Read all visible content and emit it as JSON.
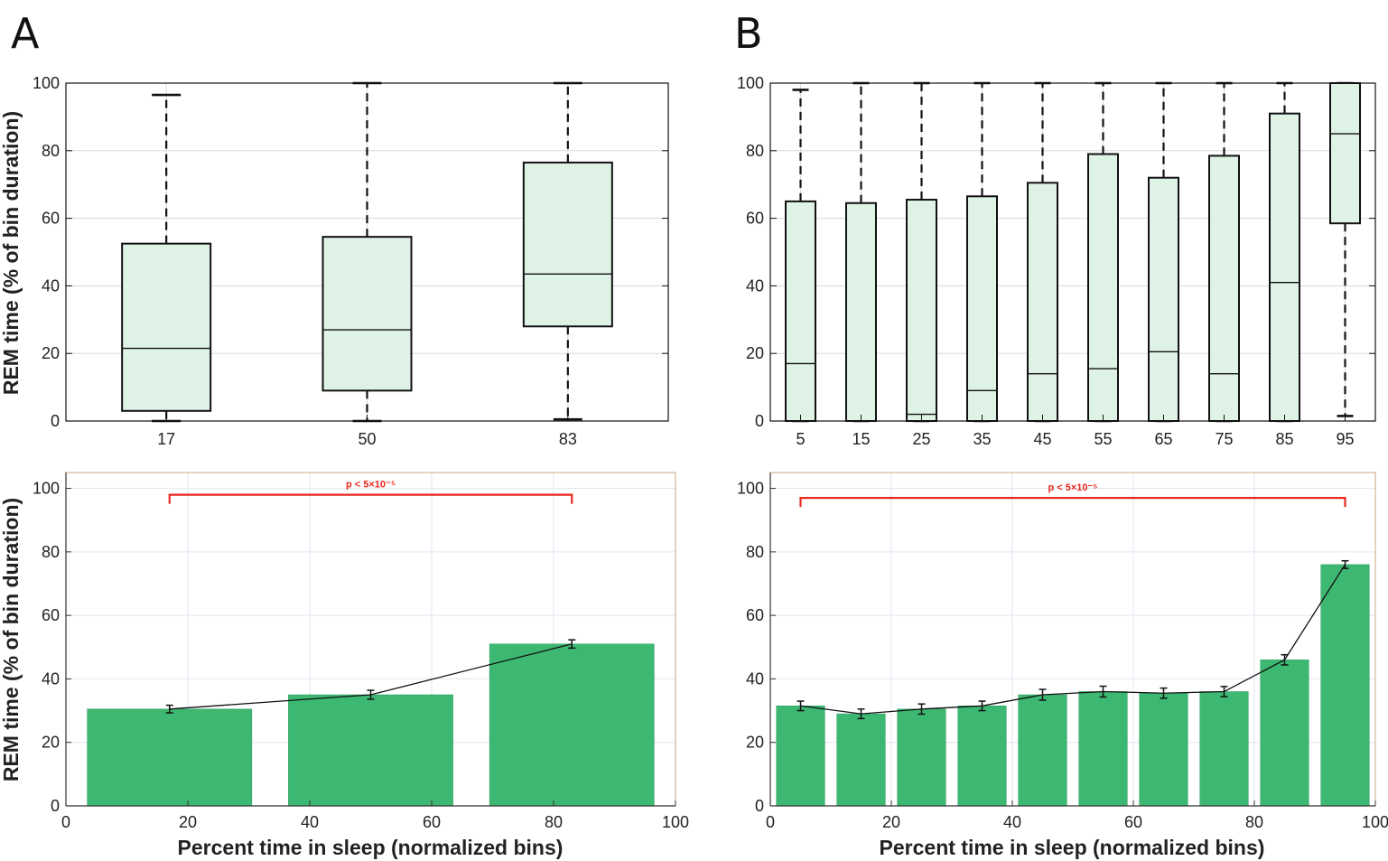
{
  "panels": {
    "a_label": "A",
    "b_label": "B"
  },
  "colors": {
    "box_fill": "#dff2e6",
    "bar_fill": "#3db872",
    "sig_color": "#e8271f",
    "grid": "#d9d9d9"
  },
  "chart_data": [
    {
      "id": "A-box",
      "type": "box",
      "categories": [
        "17",
        "50",
        "83"
      ],
      "ylim": [
        0,
        100
      ],
      "yticks": [
        "0",
        "20",
        "40",
        "60",
        "80",
        "100"
      ],
      "ylabel": "REM time (% of bin duration)",
      "boxes": [
        {
          "whislo": 0,
          "q1": 3,
          "med": 21.5,
          "q3": 52.5,
          "whishi": 96.5
        },
        {
          "whislo": 0,
          "q1": 9,
          "med": 27,
          "q3": 54.5,
          "whishi": 100
        },
        {
          "whislo": 0.5,
          "q1": 28,
          "med": 43.5,
          "q3": 76.5,
          "whishi": 100
        }
      ]
    },
    {
      "id": "B-box",
      "type": "box",
      "categories": [
        "5",
        "15",
        "25",
        "35",
        "45",
        "55",
        "65",
        "75",
        "85",
        "95"
      ],
      "ylim": [
        0,
        100
      ],
      "yticks": [
        "0",
        "20",
        "40",
        "60",
        "80",
        "100"
      ],
      "boxes": [
        {
          "whislo": 0,
          "q1": 0,
          "med": 17,
          "q3": 65,
          "whishi": 98
        },
        {
          "whislo": 0,
          "q1": 0,
          "med": 0,
          "q3": 64.5,
          "whishi": 100
        },
        {
          "whislo": 0,
          "q1": 0,
          "med": 2,
          "q3": 65.5,
          "whishi": 100
        },
        {
          "whislo": 0,
          "q1": 0,
          "med": 9,
          "q3": 66.5,
          "whishi": 100
        },
        {
          "whislo": 0,
          "q1": 0,
          "med": 14,
          "q3": 70.5,
          "whishi": 100
        },
        {
          "whislo": 0,
          "q1": 0,
          "med": 15.5,
          "q3": 79,
          "whishi": 100
        },
        {
          "whislo": 0,
          "q1": 0,
          "med": 20.5,
          "q3": 72,
          "whishi": 100
        },
        {
          "whislo": 0,
          "q1": 0,
          "med": 14,
          "q3": 78.5,
          "whishi": 100
        },
        {
          "whislo": 0,
          "q1": 0,
          "med": 41,
          "q3": 91,
          "whishi": 100
        },
        {
          "whislo": 1.5,
          "q1": 58.5,
          "med": 85,
          "q3": 100,
          "whishi": 100
        }
      ]
    },
    {
      "id": "A-bar",
      "type": "bar",
      "x": [
        17,
        50,
        83
      ],
      "bar_width": 27,
      "values": [
        30.5,
        35,
        51
      ],
      "errors": [
        1.2,
        1.4,
        1.3
      ],
      "xlim": [
        0,
        100
      ],
      "ylim": [
        0,
        105
      ],
      "xticks": [
        "0",
        "20",
        "40",
        "60",
        "80",
        "100"
      ],
      "yticks": [
        "0",
        "20",
        "40",
        "60",
        "80",
        "100"
      ],
      "xlabel": "Percent time in sleep (normalized bins)",
      "ylabel": "REM time (% of bin duration)",
      "significance": {
        "from": 17,
        "to": 83,
        "y": 98,
        "text": "p < 5×10⁻⁵"
      }
    },
    {
      "id": "B-bar",
      "type": "bar",
      "x": [
        5,
        15,
        25,
        35,
        45,
        55,
        65,
        75,
        85,
        95
      ],
      "bar_width": 8,
      "values": [
        31.5,
        29,
        30.5,
        31.5,
        35,
        36,
        35.5,
        36,
        46,
        76
      ],
      "errors": [
        1.5,
        1.5,
        1.6,
        1.5,
        1.7,
        1.7,
        1.6,
        1.6,
        1.6,
        1.2
      ],
      "xlim": [
        0,
        100
      ],
      "ylim": [
        0,
        105
      ],
      "xticks": [
        "0",
        "20",
        "40",
        "60",
        "80",
        "100"
      ],
      "yticks": [
        "0",
        "20",
        "40",
        "60",
        "80",
        "100"
      ],
      "xlabel": "Percent time in sleep (normalized bins)",
      "significance": {
        "from": 5,
        "to": 95,
        "y": 97,
        "text": "p < 5×10⁻⁵"
      }
    }
  ]
}
